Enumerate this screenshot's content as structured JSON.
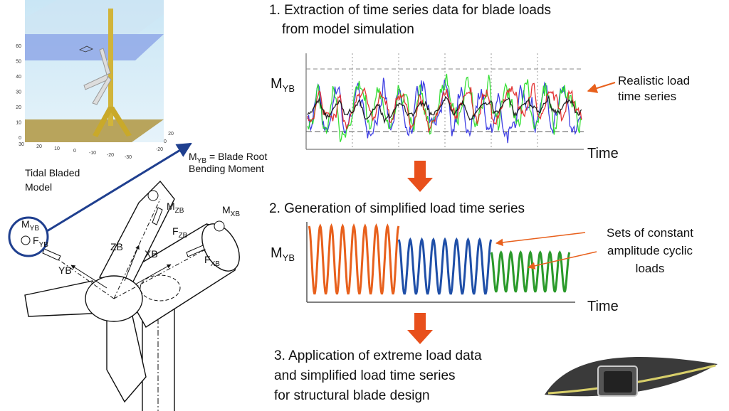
{
  "model_plot": {
    "z_ticks": [
      60,
      50,
      40,
      30,
      20,
      10,
      0
    ],
    "x_ticks": [
      30,
      20,
      10,
      0,
      -10,
      -20,
      -30
    ],
    "y_ticks": [
      20,
      0,
      -20
    ],
    "caption": [
      "Tidal Bladed",
      "Model"
    ]
  },
  "definition": {
    "symbol": "M",
    "subscript": "YB",
    "lines": [
      "= Blade Root",
      "Bending Moment"
    ]
  },
  "turbine_labels": [
    {
      "symbol": "M",
      "subscript": "ZB"
    },
    {
      "symbol": "M",
      "subscript": "XB"
    },
    {
      "symbol": "M",
      "subscript": "YB"
    },
    {
      "symbol": "F",
      "subscript": "YB"
    },
    {
      "symbol": "F",
      "subscript": "ZB"
    },
    {
      "symbol": "F",
      "subscript": "XB"
    },
    {
      "symbol": "",
      "subscript": "",
      "text": "YB"
    },
    {
      "symbol": "",
      "subscript": "",
      "text": "ZB"
    },
    {
      "symbol": "",
      "subscript": "",
      "text": "XB"
    }
  ],
  "steps": [
    [
      "1. Extraction of time series data for blade loads",
      "from model simulation"
    ],
    [
      "2. Generation of simplified load time series"
    ],
    [
      "3. Application of extreme load data",
      "and simplified load time series",
      "for structural blade design"
    ]
  ],
  "load_plot": {
    "y_label": {
      "symbol": "M",
      "subscript": "YB"
    },
    "x_label": "Time",
    "annotation": [
      "Realistic load",
      "time series"
    ]
  },
  "cyclic_plot": {
    "y_label": {
      "symbol": "M",
      "subscript": "YB"
    },
    "x_label": "Time",
    "annotation": [
      "Sets of constant",
      "amplitude cyclic",
      "loads"
    ]
  }
}
